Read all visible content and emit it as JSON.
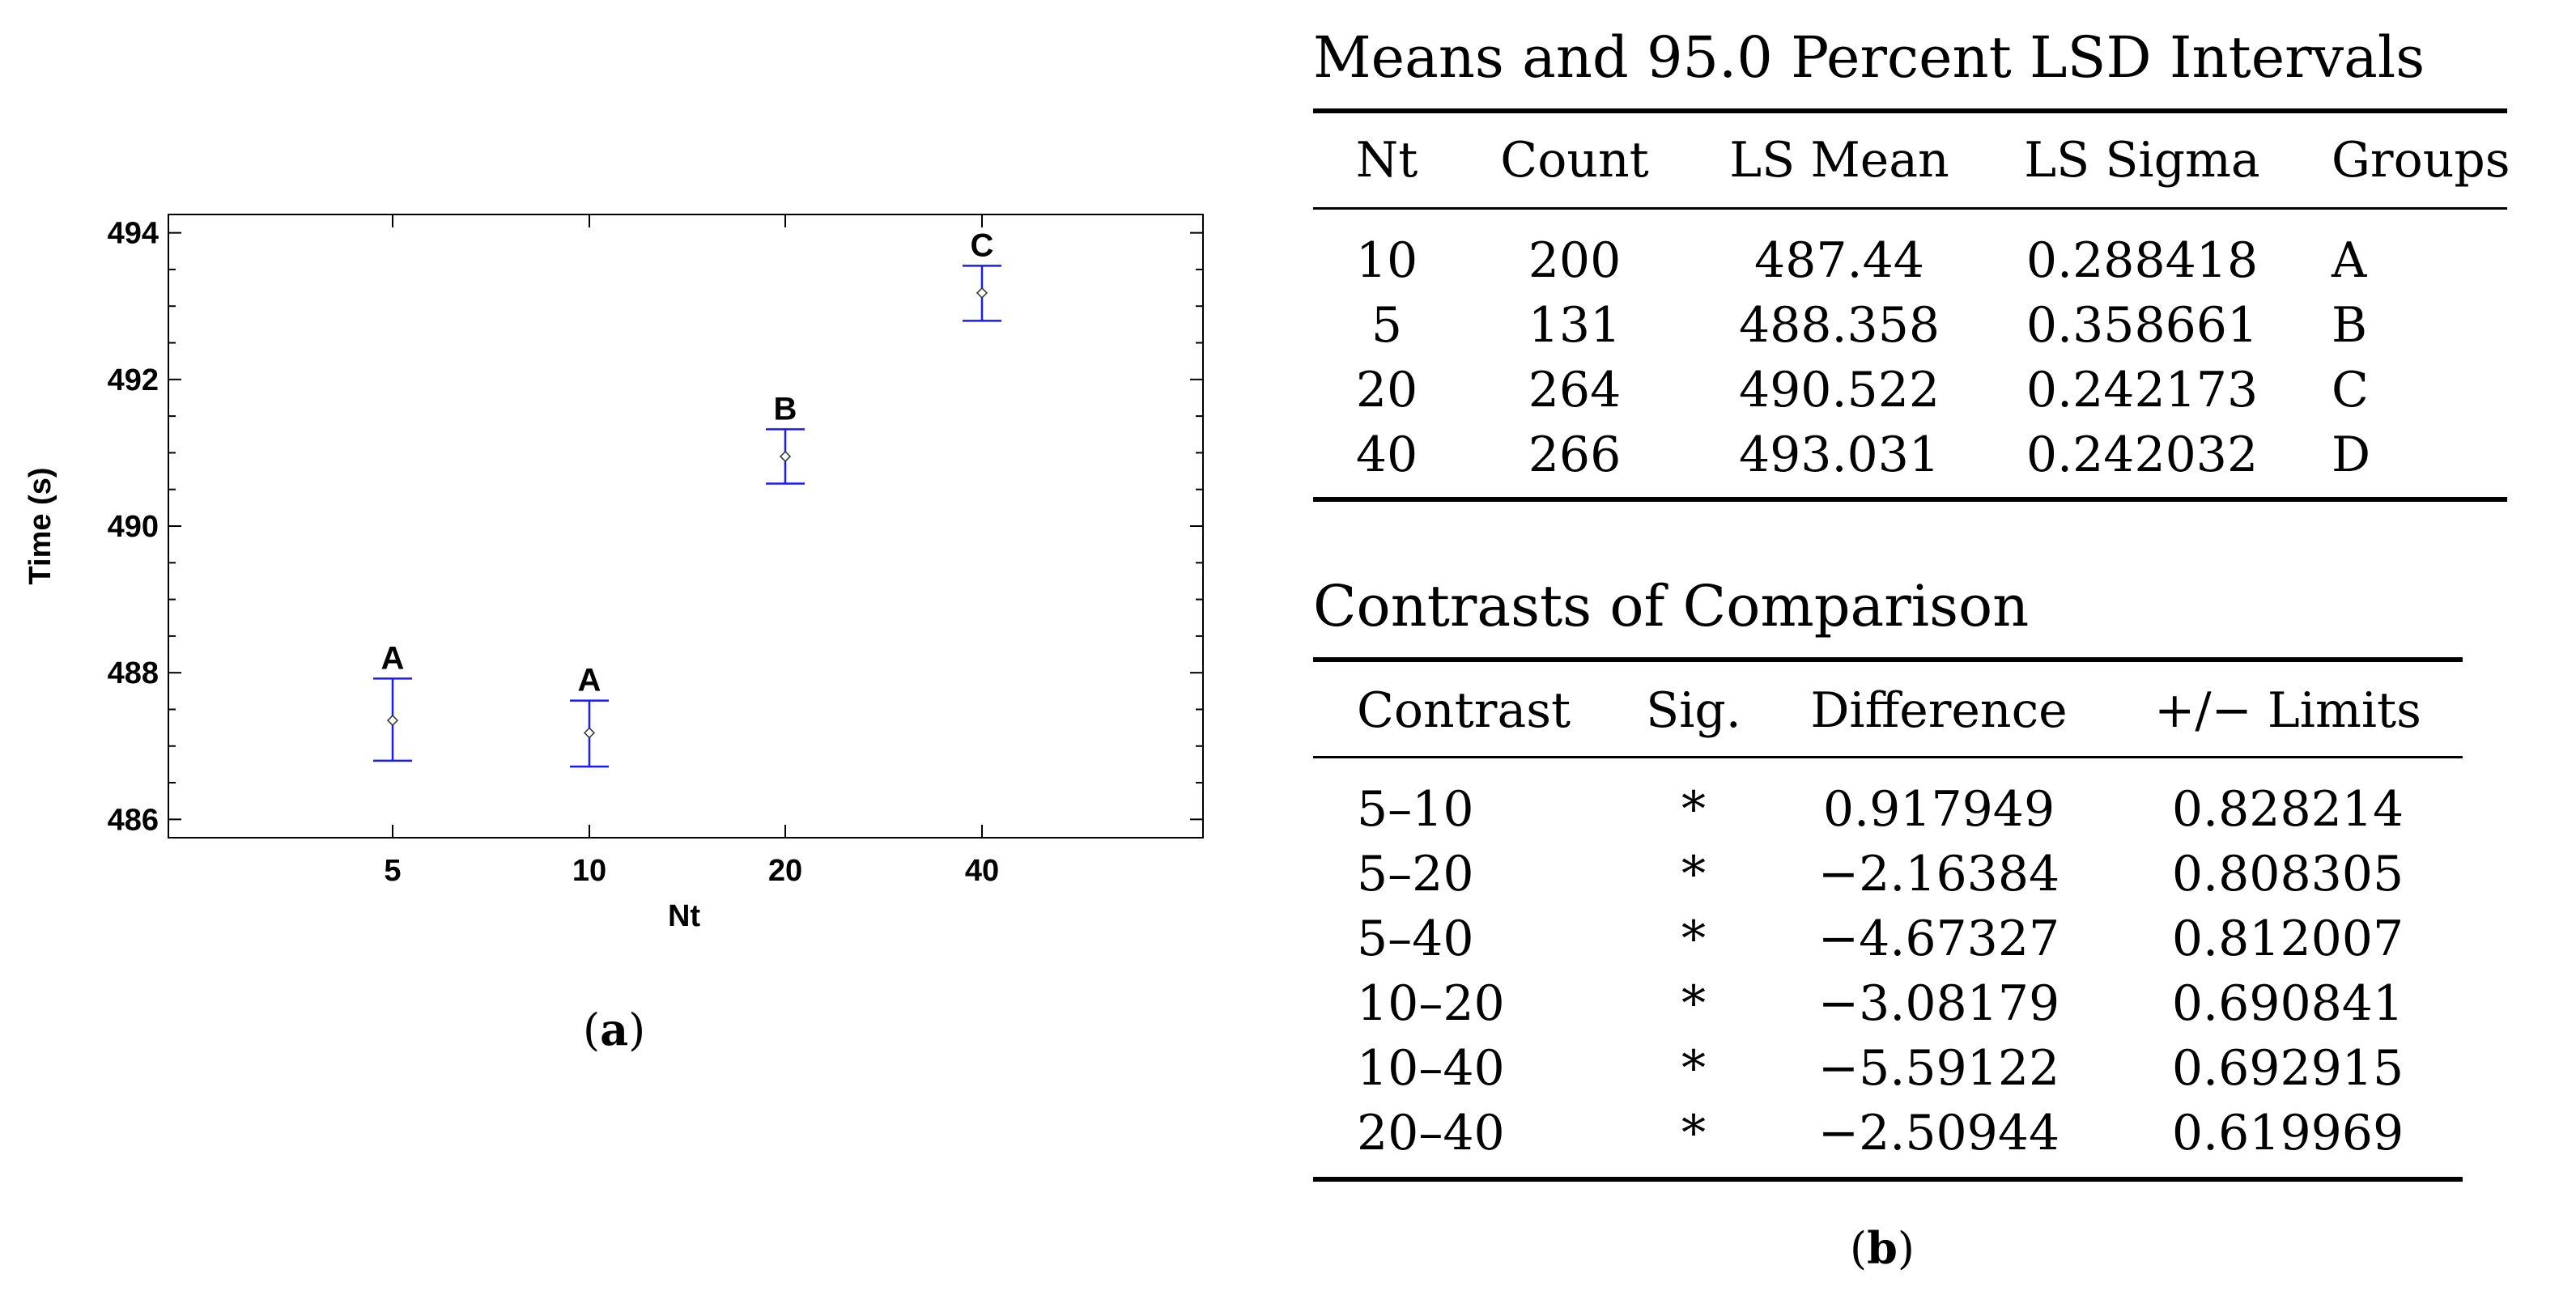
{
  "chart_data": {
    "type": "scatter",
    "subtype": "means_with_error_bars",
    "xlabel": "Nt",
    "ylabel": "Time (s)",
    "categories": [
      "5",
      "10",
      "20",
      "40"
    ],
    "means": [
      487.35,
      487.18,
      490.95,
      493.18
    ],
    "lower": [
      486.8,
      486.72,
      490.58,
      492.8
    ],
    "upper": [
      487.92,
      487.62,
      491.32,
      493.55
    ],
    "groups": [
      "A",
      "A",
      "B",
      "C"
    ],
    "yticks": [
      486,
      488,
      490,
      492,
      494
    ],
    "ylim": [
      485.75,
      494.25
    ],
    "series_color": "#1a1aff",
    "grid": false
  },
  "captions": {
    "a": "a",
    "b": "b"
  },
  "means_table": {
    "title": "Means and 95.0 Percent LSD Intervals",
    "headers": [
      "Nt",
      "Count",
      "LS Mean",
      "LS Sigma",
      "Groups"
    ],
    "rows": [
      [
        "10",
        "200",
        "487.44",
        "0.288418",
        "A"
      ],
      [
        "5",
        "131",
        "488.358",
        "0.358661",
        "B"
      ],
      [
        "20",
        "264",
        "490.522",
        "0.242173",
        "C"
      ],
      [
        "40",
        "266",
        "493.031",
        "0.242032",
        "D"
      ]
    ]
  },
  "contrasts_table": {
    "title": "Contrasts of Comparison",
    "headers": [
      "Contrast",
      "Sig.",
      "Difference",
      "+/− Limits"
    ],
    "rows": [
      [
        "5–10",
        "*",
        "0.917949",
        "0.828214"
      ],
      [
        "5–20",
        "*",
        "−2.16384",
        "0.808305"
      ],
      [
        "5–40",
        "*",
        "−4.67327",
        "0.812007"
      ],
      [
        "10–20",
        "*",
        "−3.08179",
        "0.690841"
      ],
      [
        "10–40",
        "*",
        "−5.59122",
        "0.692915"
      ],
      [
        "20–40",
        "*",
        "−2.50944",
        "0.619969"
      ]
    ]
  }
}
